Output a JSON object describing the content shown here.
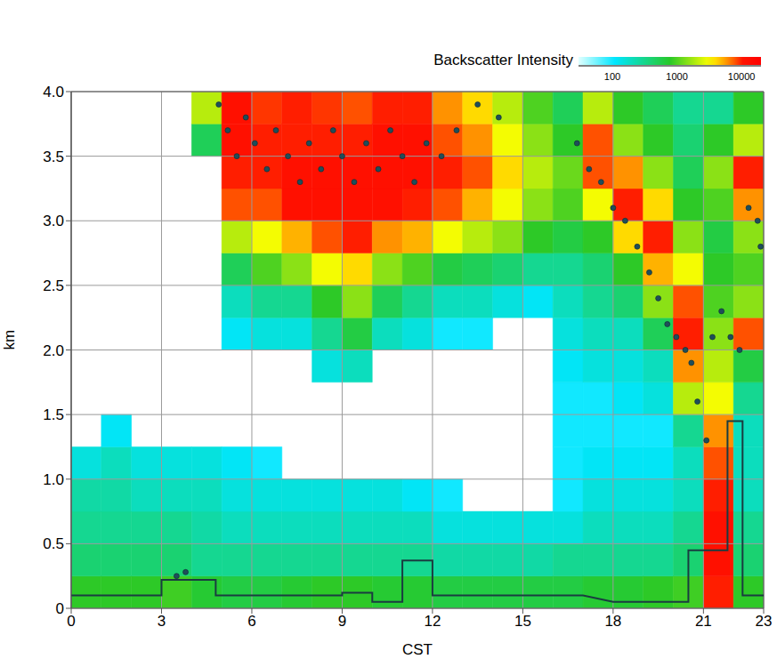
{
  "chart_data": {
    "type": "heatmap",
    "x_label": "CST",
    "y_label": "km",
    "xlim": [
      0,
      23
    ],
    "ylim": [
      0,
      4
    ],
    "xticks": [
      0,
      3,
      6,
      9,
      12,
      15,
      18,
      21,
      23
    ],
    "yticks": [
      0,
      0.5,
      {
        "value": 1,
        "label": "1.0"
      },
      1.5,
      {
        "value": 2,
        "label": "2.0"
      },
      2.5,
      {
        "value": 3,
        "label": "3.0"
      },
      3.5,
      {
        "value": 4,
        "label": "4.0"
      }
    ],
    "grid": true,
    "x_bins": [
      0,
      1,
      2,
      3,
      4,
      5,
      6,
      7,
      8,
      9,
      10,
      11,
      12,
      13,
      14,
      15,
      16,
      17,
      18,
      19,
      20,
      21,
      22,
      23
    ],
    "y_bins": [
      0,
      0.25,
      0.5,
      0.75,
      1,
      1.25,
      1.5,
      1.75,
      2,
      2.25,
      2.5,
      2.75,
      3,
      3.25,
      3.5,
      3.75,
      4
    ],
    "cells": [
      [
        800,
        400,
        300,
        250,
        150,
        null,
        null,
        null,
        null,
        null,
        null,
        null,
        null,
        null,
        null,
        null
      ],
      [
        800,
        400,
        300,
        250,
        200,
        120,
        null,
        null,
        null,
        null,
        null,
        null,
        null,
        null,
        null,
        null
      ],
      [
        800,
        400,
        300,
        200,
        150,
        null,
        null,
        null,
        null,
        null,
        null,
        null,
        null,
        null,
        null,
        null
      ],
      [
        900,
        400,
        300,
        200,
        150,
        null,
        null,
        null,
        null,
        null,
        null,
        null,
        null,
        null,
        null,
        null
      ],
      [
        700,
        300,
        250,
        200,
        150,
        null,
        null,
        null,
        null,
        null,
        null,
        null,
        null,
        null,
        500,
        2000
      ],
      [
        600,
        300,
        200,
        150,
        120,
        null,
        null,
        null,
        120,
        200,
        500,
        2000,
        8000,
        10000,
        12000,
        12000
      ],
      [
        600,
        300,
        200,
        150,
        100,
        null,
        null,
        null,
        150,
        300,
        1000,
        3000,
        8000,
        10000,
        10000,
        9000
      ],
      [
        700,
        300,
        200,
        150,
        null,
        null,
        null,
        null,
        150,
        300,
        1500,
        5000,
        12000,
        12000,
        10000,
        10000
      ],
      [
        800,
        300,
        200,
        150,
        null,
        null,
        null,
        150,
        300,
        800,
        3000,
        8000,
        12000,
        12000,
        10000,
        9000
      ],
      [
        800,
        300,
        200,
        150,
        null,
        null,
        null,
        200,
        600,
        1500,
        4000,
        10000,
        12000,
        12000,
        10000,
        8000
      ],
      [
        700,
        300,
        200,
        150,
        null,
        null,
        null,
        null,
        200,
        500,
        1500,
        6000,
        12000,
        12000,
        12000,
        10000
      ],
      [
        700,
        300,
        200,
        120,
        null,
        null,
        null,
        null,
        150,
        300,
        1000,
        5000,
        10000,
        12000,
        12000,
        10000
      ],
      [
        600,
        250,
        150,
        100,
        null,
        null,
        null,
        null,
        100,
        200,
        600,
        3000,
        8000,
        10000,
        8000,
        6000
      ],
      [
        600,
        250,
        150,
        null,
        null,
        null,
        null,
        null,
        100,
        200,
        500,
        2000,
        5000,
        8000,
        6000,
        4000
      ],
      [
        600,
        250,
        150,
        null,
        null,
        null,
        null,
        null,
        null,
        150,
        400,
        1500,
        3000,
        4000,
        3000,
        2000
      ],
      [
        600,
        250,
        150,
        null,
        null,
        null,
        null,
        null,
        null,
        120,
        300,
        800,
        1500,
        2000,
        1500,
        1000
      ],
      [
        600,
        300,
        150,
        100,
        100,
        100,
        100,
        120,
        150,
        200,
        300,
        600,
        1000,
        1200,
        800,
        500
      ],
      [
        700,
        300,
        200,
        150,
        120,
        100,
        100,
        150,
        200,
        300,
        400,
        800,
        3000,
        8000,
        8000,
        2000
      ],
      [
        700,
        300,
        200,
        150,
        120,
        100,
        120,
        150,
        200,
        400,
        800,
        4000,
        10000,
        6000,
        1500,
        800
      ],
      [
        800,
        300,
        200,
        150,
        120,
        100,
        150,
        200,
        500,
        1500,
        5000,
        10000,
        4000,
        1500,
        800,
        500
      ],
      [
        900,
        400,
        300,
        200,
        200,
        300,
        2000,
        6000,
        10000,
        8000,
        3000,
        1500,
        800,
        500,
        400,
        300
      ],
      [
        10000,
        12000,
        12000,
        10000,
        8000,
        6000,
        3000,
        2000,
        1500,
        1000,
        800,
        600,
        1000,
        1500,
        800,
        300
      ],
      [
        800,
        400,
        300,
        200,
        200,
        200,
        300,
        600,
        8000,
        1500,
        1000,
        1500,
        6000,
        10000,
        2000,
        800
      ]
    ],
    "colorbar": {
      "title": "Backscatter Intensity",
      "range": [
        30,
        20000
      ],
      "ticks": [
        100,
        1000,
        10000
      ],
      "log": true
    },
    "series": [
      {
        "type": "line",
        "color": "#1a3c40",
        "line_style": "solid",
        "x": [
          0,
          3,
          3,
          4.8,
          4.8,
          9,
          9,
          10,
          10,
          11,
          11,
          12,
          12,
          17,
          18,
          20.5,
          20.5,
          21.8,
          21.8,
          22.3,
          22.3,
          23
        ],
        "values": [
          0.1,
          0.1,
          0.22,
          0.22,
          0.1,
          0.1,
          0.12,
          0.12,
          0.05,
          0.05,
          0.37,
          0.37,
          0.1,
          0.1,
          0.05,
          0.05,
          0.45,
          0.45,
          1.45,
          1.45,
          0.1,
          0.1
        ]
      },
      {
        "type": "scatter",
        "color": "#1f4e5a",
        "marker": "circle",
        "x": [
          3.5,
          3.8,
          4.9,
          5.2,
          5.5,
          5.8,
          6.1,
          6.5,
          6.8,
          7.2,
          7.6,
          7.9,
          8.3,
          8.7,
          9.0,
          9.4,
          9.8,
          10.2,
          10.6,
          11.0,
          11.4,
          11.8,
          12.3,
          12.8,
          13.5,
          14.2,
          16.8,
          17.2,
          17.6,
          18.0,
          18.4,
          18.8,
          19.2,
          19.5,
          19.8,
          20.1,
          20.4,
          20.6,
          20.8,
          21.1,
          21.3,
          21.6,
          21.9,
          22.2,
          22.5,
          22.8,
          22.9
        ],
        "values": [
          0.25,
          0.28,
          3.9,
          3.7,
          3.5,
          3.8,
          3.6,
          3.4,
          3.7,
          3.5,
          3.3,
          3.6,
          3.4,
          3.7,
          3.5,
          3.3,
          3.6,
          3.4,
          3.7,
          3.5,
          3.3,
          3.6,
          3.5,
          3.7,
          3.9,
          3.8,
          3.6,
          3.4,
          3.3,
          3.1,
          3.0,
          2.8,
          2.6,
          2.4,
          2.2,
          2.1,
          2.0,
          1.9,
          1.6,
          1.3,
          2.1,
          2.3,
          2.1,
          2.0,
          3.1,
          3.0,
          2.8
        ]
      }
    ]
  }
}
